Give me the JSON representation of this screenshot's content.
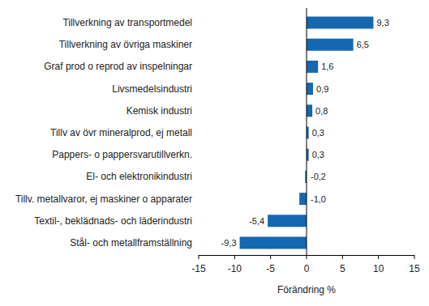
{
  "chart_data": {
    "type": "bar",
    "orientation": "horizontal",
    "categories": [
      "Tillverkning av transportmedel",
      "Tillverkning av övriga maskiner",
      "Graf prod o reprod av inspelningar",
      "Livsmedelsindustri",
      "Kemisk industri",
      "Tillv av övr mineralprod, ej metall",
      "Pappers- o pappersvarutillverkn.",
      "El- och elektronikindustri",
      "Tillv. metallvaror, ej maskiner o apparater",
      "Textil-, beklädnads- och läderindustri",
      "Stål- och metallframställning"
    ],
    "values": [
      9.3,
      6.5,
      1.6,
      0.9,
      0.8,
      0.3,
      0.3,
      -0.2,
      -1.0,
      -5.4,
      -9.3
    ],
    "value_labels": [
      "9,3",
      "6,5",
      "1,6",
      "0,9",
      "0,8",
      "0,3",
      "0,3",
      "-0,2",
      "-1,0",
      "-5,4",
      "-9,3"
    ],
    "data_labels": true,
    "color": "#1468b0",
    "x_label": "Förändring %",
    "xlim": [
      -15,
      15
    ],
    "xticks": [
      -15,
      -10,
      -5,
      0,
      5,
      10,
      15
    ],
    "grid": false
  }
}
